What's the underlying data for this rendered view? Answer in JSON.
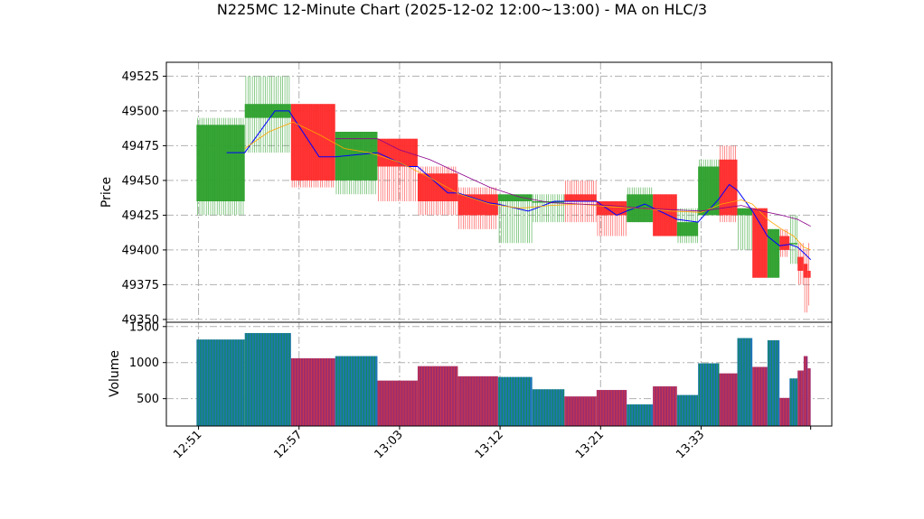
{
  "chart_data": {
    "type": "candlestick",
    "title": "N225MC 12-Minute Chart (2025-12-02 12:00~13:00) - MA on HLC/3",
    "price_panel": {
      "ylabel": "Price",
      "yticks": [
        49350,
        49375,
        49400,
        49425,
        49450,
        49475,
        49500,
        49525
      ],
      "ylim": [
        49348,
        49535
      ],
      "grid": true
    },
    "volume_panel": {
      "ylabel": "Volume",
      "yticks": [
        500,
        1000,
        1500
      ],
      "ylim": [
        120,
        1560
      ],
      "grid": true
    },
    "xticks": [
      {
        "x": 0,
        "label": "12:51"
      },
      {
        "x": 10,
        "label": "12:57"
      },
      {
        "x": 20,
        "label": "13:03"
      },
      {
        "x": 30,
        "label": "13:12"
      },
      {
        "x": 40,
        "label": "13:21"
      },
      {
        "x": 50,
        "label": "13:33"
      }
    ],
    "xlim": [
      -3.2,
      63
    ],
    "colors": {
      "up": "#2ca02c",
      "down": "#ff2a2a",
      "up_volume_bar": "#1f77b4",
      "down_volume_bar": "#9b2d6f",
      "ma_short": "#0000ff",
      "ma_mid": "#ffa500",
      "ma_long": "#8b008b",
      "grid": "#b0b0b0"
    },
    "candles": [
      {
        "start": -0.2,
        "end": 4.6,
        "open": 49435,
        "high": 49495,
        "low": 49425,
        "close": 49490,
        "volume": 1320
      },
      {
        "start": 4.6,
        "end": 9.2,
        "open": 49495,
        "high": 49525,
        "low": 49470,
        "close": 49505,
        "volume": 1410
      },
      {
        "start": 9.2,
        "end": 13.6,
        "open": 49505,
        "high": 49505,
        "low": 49445,
        "close": 49450,
        "volume": 1060
      },
      {
        "start": 13.6,
        "end": 17.8,
        "open": 49450,
        "high": 49485,
        "low": 49440,
        "close": 49485,
        "volume": 1090
      },
      {
        "start": 17.8,
        "end": 21.8,
        "open": 49480,
        "high": 49480,
        "low": 49435,
        "close": 49460,
        "volume": 750
      },
      {
        "start": 21.8,
        "end": 25.8,
        "open": 49455,
        "high": 49460,
        "low": 49425,
        "close": 49435,
        "volume": 950
      },
      {
        "start": 25.8,
        "end": 29.8,
        "open": 49440,
        "high": 49445,
        "low": 49415,
        "close": 49425,
        "volume": 810
      },
      {
        "start": 29.8,
        "end": 33.2,
        "open": 49435,
        "high": 49440,
        "low": 49405,
        "close": 49440,
        "volume": 800
      },
      {
        "start": 33.2,
        "end": 36.4,
        "open": 49435,
        "high": 49440,
        "low": 49420,
        "close": 49435,
        "volume": 630
      },
      {
        "start": 36.4,
        "end": 39.6,
        "open": 49440,
        "high": 49450,
        "low": 49420,
        "close": 49435,
        "volume": 530
      },
      {
        "start": 39.6,
        "end": 42.6,
        "open": 49435,
        "high": 49435,
        "low": 49410,
        "close": 49425,
        "volume": 620
      },
      {
        "start": 42.6,
        "end": 45.2,
        "open": 49420,
        "high": 49445,
        "low": 49420,
        "close": 49440,
        "volume": 420
      },
      {
        "start": 45.2,
        "end": 47.6,
        "open": 49440,
        "high": 49440,
        "low": 49410,
        "close": 49410,
        "volume": 670
      },
      {
        "start": 47.6,
        "end": 49.7,
        "open": 49410,
        "high": 49430,
        "low": 49405,
        "close": 49420,
        "volume": 550
      },
      {
        "start": 49.7,
        "end": 51.8,
        "open": 49425,
        "high": 49465,
        "low": 49425,
        "close": 49460,
        "volume": 990
      },
      {
        "start": 51.8,
        "end": 53.6,
        "open": 49465,
        "high": 49475,
        "low": 49420,
        "close": 49425,
        "volume": 850
      },
      {
        "start": 53.6,
        "end": 55.1,
        "open": 49425,
        "high": 49430,
        "low": 49400,
        "close": 49430,
        "volume": 1340
      },
      {
        "start": 55.1,
        "end": 56.6,
        "open": 49430,
        "high": 49430,
        "low": 49380,
        "close": 49380,
        "volume": 940
      },
      {
        "start": 56.6,
        "end": 57.8,
        "open": 49380,
        "high": 49415,
        "low": 49380,
        "close": 49415,
        "volume": 1310
      },
      {
        "start": 57.8,
        "end": 58.8,
        "open": 49410,
        "high": 49415,
        "low": 49395,
        "close": 49400,
        "volume": 510
      },
      {
        "start": 58.8,
        "end": 59.6,
        "open": 49405,
        "high": 49425,
        "low": 49390,
        "close": 49405,
        "volume": 780
      },
      {
        "start": 59.6,
        "end": 60.2,
        "open": 49395,
        "high": 49405,
        "low": 49375,
        "close": 49385,
        "volume": 890
      },
      {
        "start": 60.2,
        "end": 60.6,
        "open": 49390,
        "high": 49400,
        "low": 49355,
        "close": 49380,
        "volume": 1090
      },
      {
        "start": 60.6,
        "end": 60.9,
        "open": 49385,
        "high": 49405,
        "low": 49360,
        "close": 49380,
        "volume": 920
      }
    ],
    "ma_lines": [
      {
        "key": "ma_short",
        "width": 1.0,
        "points": [
          [
            2.8,
            49470
          ],
          [
            4.6,
            49470
          ],
          [
            7.6,
            49500
          ],
          [
            9.0,
            49500
          ],
          [
            12.0,
            49467
          ],
          [
            13.6,
            49467
          ],
          [
            17.8,
            49470
          ],
          [
            20.8,
            49460
          ],
          [
            21.8,
            49460
          ],
          [
            24.8,
            49441
          ],
          [
            25.8,
            49441
          ],
          [
            28.8,
            49434
          ],
          [
            29.8,
            49433
          ],
          [
            32.8,
            49428
          ],
          [
            33.2,
            49429
          ],
          [
            35.4,
            49435
          ],
          [
            39.6,
            49435
          ],
          [
            41.6,
            49425
          ],
          [
            42.6,
            49428
          ],
          [
            44.4,
            49433
          ],
          [
            47.6,
            49422
          ],
          [
            49.7,
            49420
          ],
          [
            51.8,
            49437
          ],
          [
            52.8,
            49447
          ],
          [
            53.6,
            49443
          ],
          [
            55.1,
            49428
          ],
          [
            56.6,
            49410
          ],
          [
            57.8,
            49403
          ],
          [
            58.8,
            49404
          ],
          [
            59.6,
            49402
          ],
          [
            60.2,
            49398
          ],
          [
            60.9,
            49393
          ]
        ]
      },
      {
        "key": "ma_mid",
        "width": 0.8,
        "points": [
          [
            4.6,
            49473
          ],
          [
            7.0,
            49485
          ],
          [
            9.4,
            49492
          ],
          [
            12.0,
            49483
          ],
          [
            14.5,
            49473
          ],
          [
            17.0,
            49470
          ],
          [
            20.0,
            49463
          ],
          [
            23.0,
            49452
          ],
          [
            26.0,
            49440
          ],
          [
            29.0,
            49433
          ],
          [
            32.0,
            49430
          ],
          [
            35.0,
            49432
          ],
          [
            38.0,
            49433
          ],
          [
            41.0,
            49431
          ],
          [
            44.0,
            49430
          ],
          [
            47.0,
            49428
          ],
          [
            50.0,
            49427
          ],
          [
            52.0,
            49433
          ],
          [
            54.0,
            49436
          ],
          [
            55.1,
            49433
          ],
          [
            56.6,
            49422
          ],
          [
            58.0,
            49415
          ],
          [
            59.2,
            49410
          ],
          [
            60.2,
            49402
          ],
          [
            60.9,
            49400
          ]
        ]
      },
      {
        "key": "ma_long",
        "width": 0.8,
        "points": [
          [
            13.6,
            49480
          ],
          [
            17.8,
            49480
          ],
          [
            20.0,
            49472
          ],
          [
            23.0,
            49465
          ],
          [
            26.0,
            49455
          ],
          [
            29.0,
            49445
          ],
          [
            32.0,
            49438
          ],
          [
            35.0,
            49434
          ],
          [
            38.0,
            49433
          ],
          [
            41.0,
            49432
          ],
          [
            44.0,
            49430
          ],
          [
            47.0,
            49429
          ],
          [
            50.0,
            49428
          ],
          [
            52.0,
            49430
          ],
          [
            54.0,
            49432
          ],
          [
            56.0,
            49428
          ],
          [
            58.0,
            49425
          ],
          [
            59.6,
            49422
          ],
          [
            60.9,
            49417
          ]
        ]
      }
    ]
  }
}
